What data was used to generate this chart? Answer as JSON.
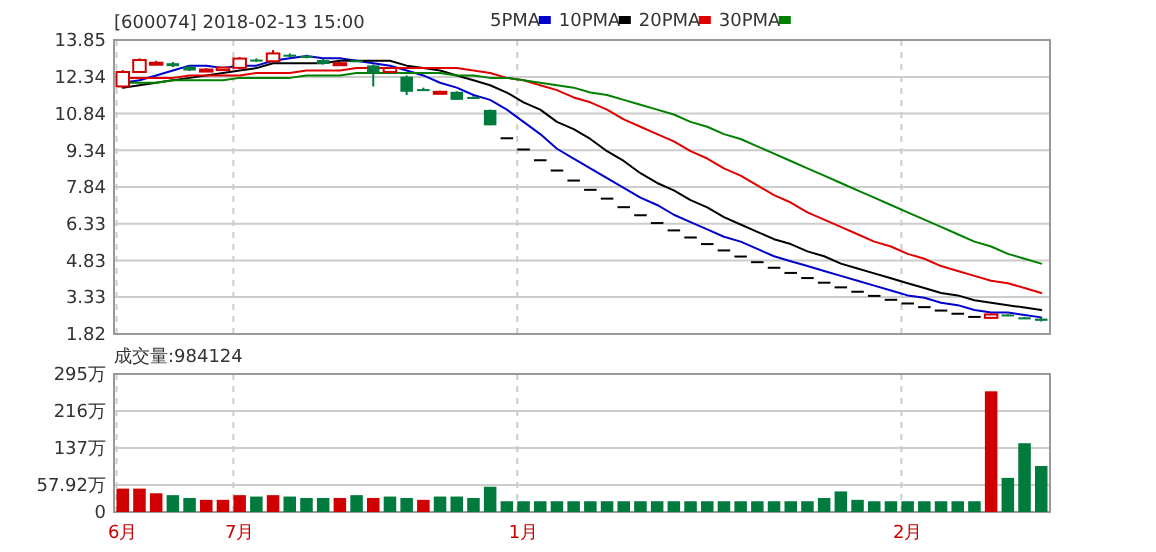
{
  "chart_data": [
    {
      "type": "candlestick",
      "title": "[600074] 2018-02-13 15:00",
      "legend": "top",
      "grid": true,
      "tick_labels": "y",
      "categories": [
        null,
        null,
        null,
        null,
        null,
        null,
        null,
        null,
        null,
        null,
        null,
        null,
        null,
        null,
        null,
        null,
        null,
        null,
        null,
        null,
        null,
        null,
        null,
        null,
        null,
        null,
        null,
        null,
        null,
        null,
        null,
        null,
        null,
        null,
        null,
        null,
        null,
        null,
        null,
        null,
        null,
        null,
        null,
        null,
        null,
        null,
        null,
        null,
        null,
        null,
        null,
        null,
        null,
        null,
        null,
        null
      ],
      "ylim": [
        1.82,
        13.85
      ],
      "yticks": [
        {
          "value": 13.85,
          "label": "13.85"
        },
        {
          "value": 12.34,
          "label": "12.34"
        },
        {
          "value": 10.84,
          "label": "10.84"
        },
        {
          "value": 9.34,
          "label": "9.34"
        },
        {
          "value": 7.84,
          "label": "7.84"
        },
        {
          "value": 6.33,
          "label": "6.33"
        },
        {
          "value": 4.83,
          "label": "4.83"
        },
        {
          "value": 3.33,
          "label": "3.33"
        },
        {
          "value": 1.82,
          "label": "1.82"
        }
      ],
      "ohlc": [
        [
          11.95,
          12.62,
          11.9,
          12.54
        ],
        [
          12.54,
          13.1,
          12.5,
          13.03
        ],
        [
          12.88,
          13.0,
          12.85,
          12.92
        ],
        [
          12.9,
          12.95,
          12.74,
          12.78
        ],
        [
          12.76,
          12.8,
          12.58,
          12.6
        ],
        [
          12.6,
          12.7,
          12.58,
          12.64
        ],
        [
          12.62,
          12.76,
          12.6,
          12.72
        ],
        [
          12.71,
          13.15,
          12.68,
          13.09
        ],
        [
          13.05,
          13.1,
          12.95,
          13.0
        ],
        [
          12.98,
          13.44,
          12.95,
          13.3
        ],
        [
          13.25,
          13.3,
          13.15,
          13.2
        ],
        [
          13.2,
          13.25,
          13.1,
          13.17
        ],
        [
          13.03,
          13.08,
          12.85,
          12.87
        ],
        [
          12.88,
          12.95,
          12.85,
          12.9
        ],
        [
          13.02,
          13.05,
          12.95,
          13.0
        ],
        [
          12.81,
          12.85,
          11.95,
          12.49
        ],
        [
          12.54,
          12.75,
          12.5,
          12.7
        ],
        [
          12.35,
          12.4,
          11.6,
          11.73
        ],
        [
          11.84,
          11.9,
          11.78,
          11.81
        ],
        [
          11.7,
          11.78,
          11.68,
          11.73
        ],
        [
          11.73,
          11.75,
          11.4,
          11.4
        ],
        [
          11.52,
          11.55,
          11.45,
          11.5
        ],
        [
          10.99,
          11.0,
          10.36,
          10.36
        ],
        [
          9.87,
          9.87,
          9.87,
          9.87
        ],
        [
          9.41,
          9.41,
          9.41,
          9.41
        ],
        [
          8.97,
          8.97,
          8.97,
          8.97
        ],
        [
          8.55,
          8.55,
          8.55,
          8.55
        ],
        [
          8.14,
          8.14,
          8.14,
          8.14
        ],
        [
          7.76,
          7.76,
          7.76,
          7.76
        ],
        [
          7.4,
          7.4,
          7.4,
          7.4
        ],
        [
          7.05,
          7.05,
          7.05,
          7.05
        ],
        [
          6.72,
          6.72,
          6.72,
          6.72
        ],
        [
          6.4,
          6.4,
          6.4,
          6.4
        ],
        [
          6.1,
          6.1,
          6.1,
          6.1
        ],
        [
          5.81,
          5.81,
          5.81,
          5.81
        ],
        [
          5.54,
          5.54,
          5.54,
          5.54
        ],
        [
          5.28,
          5.28,
          5.28,
          5.28
        ],
        [
          5.03,
          5.03,
          5.03,
          5.03
        ],
        [
          4.8,
          4.8,
          4.8,
          4.8
        ],
        [
          4.57,
          4.57,
          4.57,
          4.57
        ],
        [
          4.36,
          4.36,
          4.36,
          4.36
        ],
        [
          4.15,
          4.15,
          4.15,
          4.15
        ],
        [
          3.96,
          3.96,
          3.96,
          3.96
        ],
        [
          3.77,
          3.77,
          3.77,
          3.77
        ],
        [
          3.59,
          3.59,
          3.59,
          3.59
        ],
        [
          3.42,
          3.42,
          3.42,
          3.42
        ],
        [
          3.26,
          3.26,
          3.26,
          3.26
        ],
        [
          3.11,
          3.11,
          3.11,
          3.11
        ],
        [
          2.96,
          2.96,
          2.96,
          2.96
        ],
        [
          2.82,
          2.82,
          2.82,
          2.82
        ],
        [
          2.69,
          2.69,
          2.69,
          2.69
        ],
        [
          2.56,
          2.56,
          2.56,
          2.56
        ],
        [
          2.48,
          2.66,
          2.45,
          2.62
        ],
        [
          2.62,
          2.63,
          2.56,
          2.58
        ],
        [
          2.5,
          2.52,
          2.45,
          2.47
        ],
        [
          2.45,
          2.5,
          2.33,
          2.36
        ]
      ],
      "colors": [
        "#d00000",
        "#d00000",
        "#d00000",
        "#007a3d",
        "#007a3d",
        "#d00000",
        "#d00000",
        "#d00000",
        "#007a3d",
        "#d00000",
        "#007a3d",
        "#007a3d",
        "#007a3d",
        "#d00000",
        "#007a3d",
        "#007a3d",
        "#d00000",
        "#007a3d",
        "#007a3d",
        "#d00000",
        "#007a3d",
        "#007a3d",
        "#007a3d",
        "#000000",
        "#000000",
        "#000000",
        "#000000",
        "#000000",
        "#000000",
        "#000000",
        "#000000",
        "#000000",
        "#000000",
        "#000000",
        "#000000",
        "#000000",
        "#000000",
        "#000000",
        "#000000",
        "#000000",
        "#000000",
        "#000000",
        "#000000",
        "#000000",
        "#000000",
        "#000000",
        "#000000",
        "#000000",
        "#000000",
        "#000000",
        "#000000",
        "#000000",
        "#d00000",
        "#007a3d",
        "#007a3d",
        "#007a3d"
      ],
      "series": [
        {
          "type": "line",
          "name": "5PMA",
          "color": "#0000cc",
          "values": [
            12.1,
            12.2,
            12.4,
            12.6,
            12.8,
            12.8,
            12.7,
            12.8,
            12.8,
            13.0,
            13.1,
            13.2,
            13.1,
            13.1,
            13.0,
            12.9,
            12.8,
            12.6,
            12.4,
            12.1,
            11.9,
            11.6,
            11.4,
            11.0,
            10.5,
            10.0,
            9.4,
            9.0,
            8.6,
            8.2,
            7.8,
            7.4,
            7.1,
            6.7,
            6.4,
            6.1,
            5.8,
            5.6,
            5.3,
            5.0,
            4.8,
            4.6,
            4.4,
            4.2,
            4.0,
            3.8,
            3.6,
            3.4,
            3.3,
            3.1,
            3.0,
            2.8,
            2.7,
            2.7,
            2.6,
            2.5
          ]
        },
        {
          "type": "line",
          "name": "10PMA",
          "color": "#000000",
          "values": [
            11.9,
            12.0,
            12.1,
            12.2,
            12.3,
            12.4,
            12.5,
            12.6,
            12.7,
            12.9,
            12.9,
            12.9,
            12.9,
            13.0,
            13.0,
            13.0,
            13.0,
            12.8,
            12.7,
            12.6,
            12.4,
            12.2,
            12.0,
            11.7,
            11.3,
            11.0,
            10.5,
            10.2,
            9.8,
            9.3,
            8.9,
            8.4,
            8.0,
            7.7,
            7.3,
            7.0,
            6.6,
            6.3,
            6.0,
            5.7,
            5.5,
            5.2,
            5.0,
            4.7,
            4.5,
            4.3,
            4.1,
            3.9,
            3.7,
            3.5,
            3.4,
            3.2,
            3.1,
            3.0,
            2.9,
            2.8
          ]
        },
        {
          "type": "line",
          "name": "20PMA",
          "color": "#e00000",
          "values": [
            12.3,
            12.3,
            12.3,
            12.3,
            12.4,
            12.4,
            12.4,
            12.4,
            12.5,
            12.5,
            12.5,
            12.6,
            12.6,
            12.6,
            12.7,
            12.7,
            12.7,
            12.7,
            12.7,
            12.7,
            12.7,
            12.6,
            12.5,
            12.3,
            12.2,
            12.0,
            11.8,
            11.5,
            11.3,
            11.0,
            10.6,
            10.3,
            10.0,
            9.7,
            9.3,
            9.0,
            8.6,
            8.3,
            7.9,
            7.5,
            7.2,
            6.8,
            6.5,
            6.2,
            5.9,
            5.6,
            5.4,
            5.1,
            4.9,
            4.6,
            4.4,
            4.2,
            4.0,
            3.9,
            3.7,
            3.5
          ]
        },
        {
          "type": "line",
          "name": "30PMA",
          "color": "#008000",
          "values": [
            12.1,
            12.1,
            12.1,
            12.2,
            12.2,
            12.2,
            12.2,
            12.3,
            12.3,
            12.3,
            12.3,
            12.4,
            12.4,
            12.4,
            12.5,
            12.5,
            12.5,
            12.5,
            12.5,
            12.5,
            12.4,
            12.4,
            12.3,
            12.3,
            12.2,
            12.1,
            12.0,
            11.9,
            11.7,
            11.6,
            11.4,
            11.2,
            11.0,
            10.8,
            10.5,
            10.3,
            10.0,
            9.8,
            9.5,
            9.2,
            8.9,
            8.6,
            8.3,
            8.0,
            7.7,
            7.4,
            7.1,
            6.8,
            6.5,
            6.2,
            5.9,
            5.6,
            5.4,
            5.1,
            4.9,
            4.7
          ]
        }
      ]
    },
    {
      "type": "bar",
      "title": "成交量:984124",
      "grid": true,
      "categories": [
        "6月",
        null,
        null,
        null,
        null,
        null,
        null,
        "7月",
        null,
        null,
        null,
        null,
        null,
        null,
        null,
        null,
        null,
        null,
        null,
        null,
        null,
        null,
        null,
        null,
        "1月",
        null,
        null,
        null,
        null,
        null,
        null,
        null,
        null,
        null,
        null,
        null,
        null,
        null,
        null,
        null,
        null,
        null,
        null,
        null,
        null,
        null,
        null,
        "2月",
        null,
        null,
        null,
        null,
        null,
        null,
        null,
        null
      ],
      "ylim": [
        0,
        295
      ],
      "yticks": [
        {
          "value": 295,
          "label": "295万"
        },
        {
          "value": 216,
          "label": "216万"
        },
        {
          "value": 137,
          "label": "137万"
        },
        {
          "value": 57.92,
          "label": "57.92万"
        },
        0
      ],
      "values": [
        50,
        50,
        40,
        36,
        30,
        26,
        26,
        36,
        33,
        36,
        33,
        30,
        30,
        30,
        36,
        30,
        33,
        30,
        26,
        33,
        33,
        30,
        54,
        23,
        23,
        23,
        23,
        23,
        23,
        23,
        23,
        23,
        23,
        23,
        23,
        23,
        23,
        23,
        23,
        23,
        23,
        23,
        30,
        44,
        26,
        23,
        23,
        23,
        23,
        23,
        23,
        23,
        258,
        73,
        147,
        98.4
      ],
      "colors": [
        "#d00000",
        "#d00000",
        "#d00000",
        "#007a3d",
        "#007a3d",
        "#d00000",
        "#d00000",
        "#d00000",
        "#007a3d",
        "#d00000",
        "#007a3d",
        "#007a3d",
        "#007a3d",
        "#d00000",
        "#007a3d",
        "#d00000",
        "#007a3d",
        "#007a3d",
        "#d00000",
        "#007a3d",
        "#007a3d",
        "#007a3d",
        "#007a3d",
        "#007a3d",
        "#007a3d",
        "#007a3d",
        "#007a3d",
        "#007a3d",
        "#007a3d",
        "#007a3d",
        "#007a3d",
        "#007a3d",
        "#007a3d",
        "#007a3d",
        "#007a3d",
        "#007a3d",
        "#007a3d",
        "#007a3d",
        "#007a3d",
        "#007a3d",
        "#007a3d",
        "#007a3d",
        "#007a3d",
        "#007a3d",
        "#007a3d",
        "#007a3d",
        "#007a3d",
        "#007a3d",
        "#007a3d",
        "#007a3d",
        "#007a3d",
        "#007a3d",
        "#d00000",
        "#007a3d",
        "#007a3d",
        "#007a3d"
      ]
    }
  ]
}
